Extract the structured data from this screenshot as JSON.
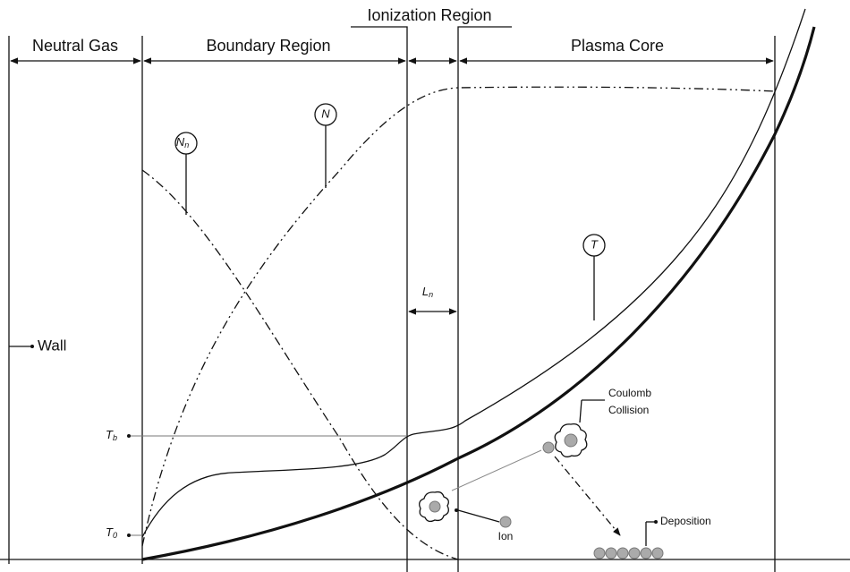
{
  "regions": {
    "neutral_gas": "Neutral Gas",
    "boundary": "Boundary Region",
    "ionization": "Ionization Region",
    "plasma_core": "Plasma Core"
  },
  "labels": {
    "nn": {
      "base": "N",
      "sub": "n"
    },
    "n": "N",
    "t": "T",
    "ln": {
      "base": "L",
      "sub": "n"
    },
    "wall": "Wall",
    "tb": {
      "base": "T",
      "sub": "b"
    },
    "t0": {
      "base": "T",
      "sub": "0"
    },
    "coulomb": [
      "Coulomb",
      "Collision"
    ],
    "ion": "Ion",
    "deposition": "Deposition"
  }
}
